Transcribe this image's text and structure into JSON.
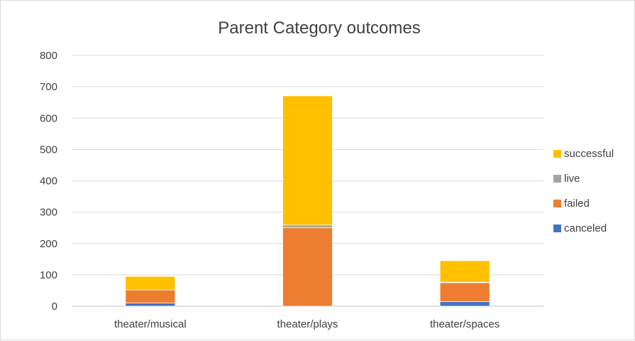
{
  "chart_data": {
    "type": "bar",
    "stacked": true,
    "title": "Parent Category outcomes",
    "categories": [
      "theater/musical",
      "theater/plays",
      "theater/spaces"
    ],
    "series": [
      {
        "name": "canceled",
        "color": "#4472c4",
        "values": [
          10,
          0,
          15
        ]
      },
      {
        "name": "failed",
        "color": "#ed7d31",
        "values": [
          42,
          250,
          60
        ]
      },
      {
        "name": "live",
        "color": "#a5a5a5",
        "values": [
          0,
          9,
          2
        ]
      },
      {
        "name": "successful",
        "color": "#ffc000",
        "values": [
          43,
          412,
          68
        ]
      }
    ],
    "ylim": [
      0,
      800
    ],
    "yticks": [
      "0",
      "100",
      "200",
      "300",
      "400",
      "500",
      "600",
      "700",
      "800"
    ],
    "grid": true,
    "legend_position": "right",
    "legend_order": [
      "successful",
      "live",
      "failed",
      "canceled"
    ]
  }
}
